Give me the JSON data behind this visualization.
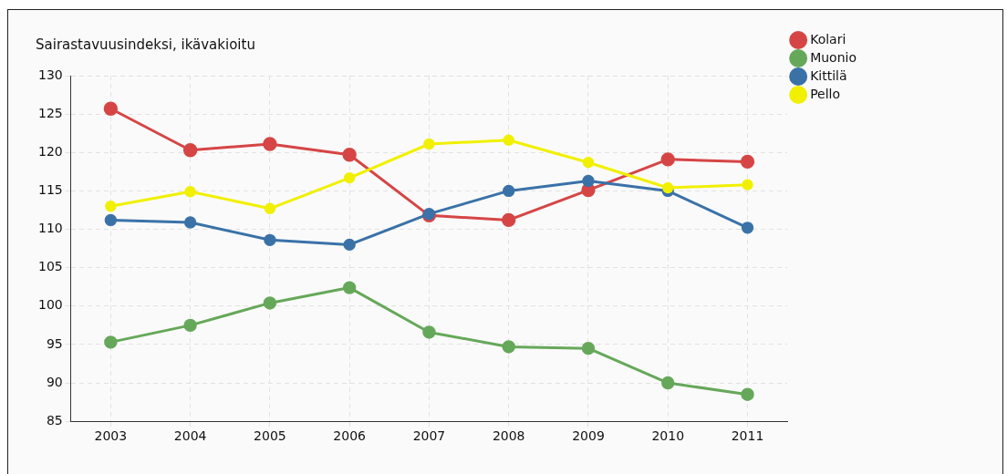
{
  "chart_data": {
    "type": "line",
    "title": "Sairastavuusindeksi, ikävakioitu",
    "categories": [
      "2003",
      "2004",
      "2005",
      "2006",
      "2007",
      "2008",
      "2009",
      "2010",
      "2011"
    ],
    "series": [
      {
        "name": "Kolari",
        "color": "#d64545",
        "values": [
          125.7,
          120.3,
          121.1,
          119.7,
          111.8,
          111.2,
          115.1,
          119.1,
          118.8
        ]
      },
      {
        "name": "Muonio",
        "color": "#66a85a",
        "values": [
          95.3,
          97.5,
          100.4,
          102.4,
          96.6,
          94.7,
          94.5,
          90.0,
          88.5
        ]
      },
      {
        "name": "Kittilä",
        "color": "#3a72a8",
        "values": [
          111.2,
          110.9,
          108.6,
          108.0,
          112.0,
          115.0,
          116.3,
          115.0,
          110.2
        ]
      },
      {
        "name": "Pello",
        "color": "#f0f000",
        "values": [
          113.0,
          114.9,
          112.7,
          116.7,
          121.1,
          121.6,
          118.7,
          115.4,
          115.8
        ]
      }
    ],
    "ylim": [
      85,
      130
    ],
    "yticks": [
      85,
      90,
      95,
      100,
      105,
      110,
      115,
      120,
      125,
      130
    ],
    "grid": true,
    "legend": "top right",
    "marker": "circle",
    "line_style": "solid"
  }
}
